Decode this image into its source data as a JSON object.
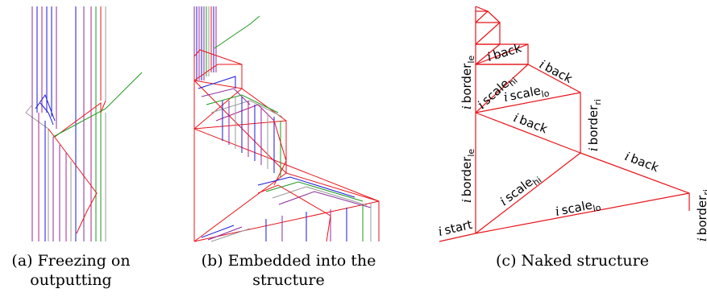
{
  "panels": [
    {
      "id": "a",
      "caption_line1": "(a) Freezing on",
      "caption_line2": "outputting"
    },
    {
      "id": "b",
      "caption_line1": "(b) Embedded into the",
      "caption_line2": "structure"
    },
    {
      "id": "c",
      "caption_line1": "(c) Naked structure",
      "caption_line2": ""
    }
  ],
  "labels": {
    "italic_i": "i",
    "border": "border",
    "sub_le": "le",
    "sub_ri": "ri",
    "scale": "scale",
    "sub_hi": "hi",
    "sub_lo": "lo",
    "back": "back",
    "start": "start"
  },
  "colors": {
    "red": "#e8141a",
    "blue": "#1a1adc",
    "purple": "#8c2a9c",
    "green": "#1d9a1d",
    "gray": "#9a9a9a",
    "magenta": "#b0208c"
  }
}
